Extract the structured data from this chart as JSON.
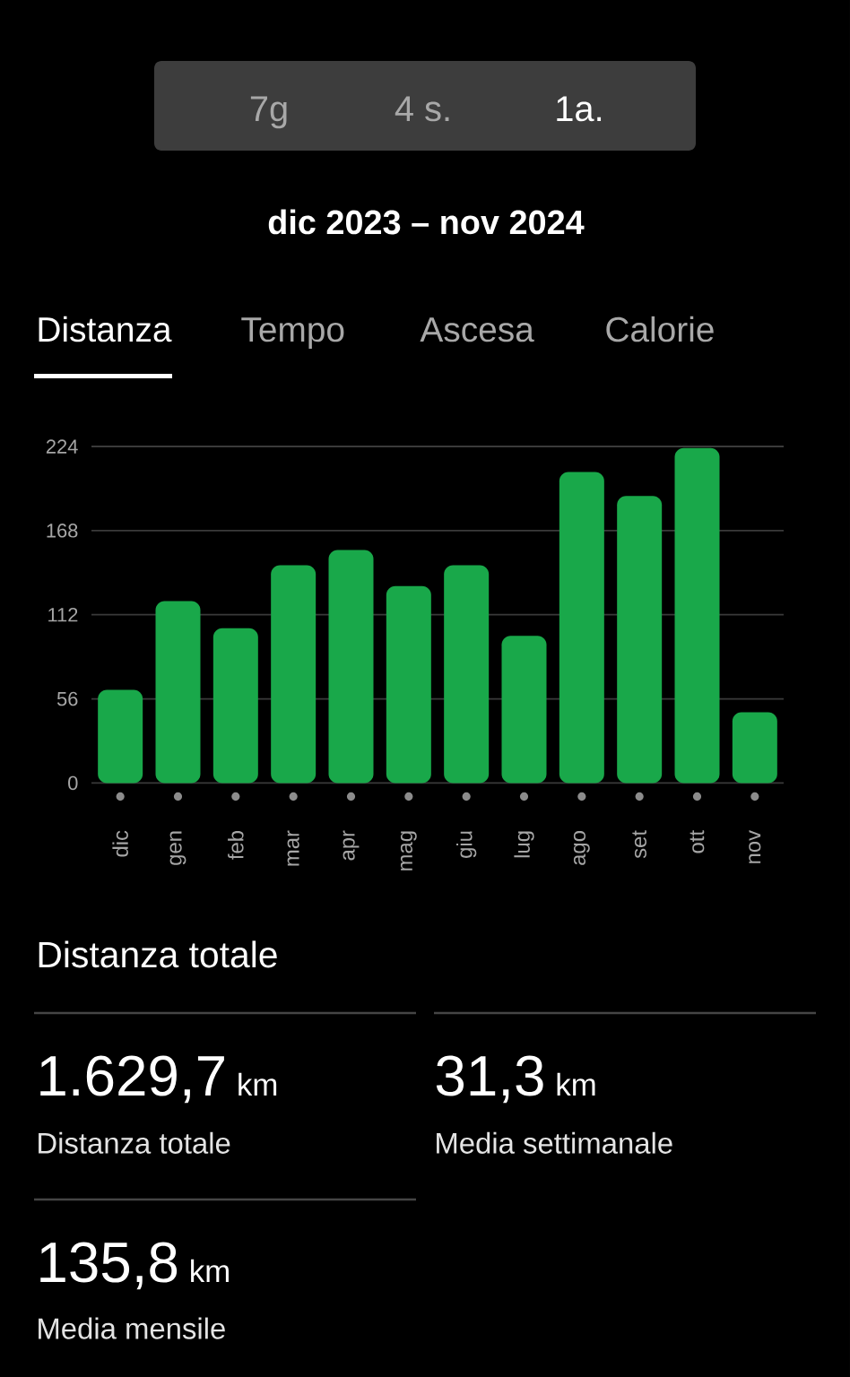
{
  "chart_data": {
    "type": "bar",
    "title": "dic 2023 – nov 2024",
    "categories": [
      "dic",
      "gen",
      "feb",
      "mar",
      "apr",
      "mag",
      "giu",
      "lug",
      "ago",
      "set",
      "ott",
      "nov"
    ],
    "values": [
      62,
      121,
      103,
      145,
      155,
      131,
      145,
      98,
      207,
      191,
      223,
      47
    ],
    "color": "#19a84a",
    "ylim": [
      0,
      224
    ],
    "yticks": [
      0,
      56,
      112,
      168,
      224
    ],
    "grid": "y",
    "annotations": [
      "7g",
      "4 s.",
      "1a.",
      "Distanza",
      "Tempo",
      "Ascesa",
      "Calorie",
      "Distanza totale",
      "1.629,7",
      "km",
      "Distanza totale",
      "31,3",
      "km",
      "Media settimanale",
      "135,8",
      "km",
      "Media mensile"
    ]
  }
}
